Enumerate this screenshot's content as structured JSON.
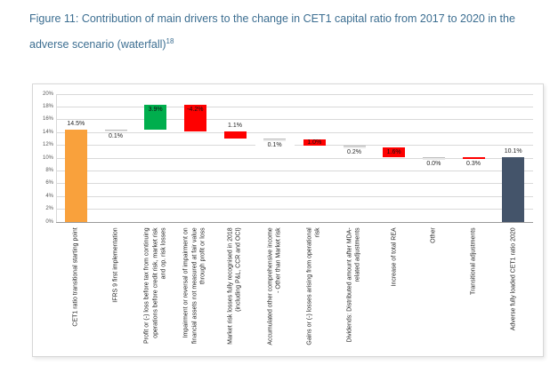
{
  "figure": {
    "title_text": "Figure 11: Contribution of main drivers to the change in CET1 capital ratio from 2017 to 2020 in the adverse scenario (waterfall)",
    "title_sup": "18"
  },
  "colors": {
    "title": "#3c6e91",
    "orange": "#f9a13c",
    "green": "#00ae4d",
    "red": "#fe0000",
    "dark_slate": "#44546a",
    "connector_fill": "#e9e9e9",
    "gridline": "#d9d9d9",
    "axis_line": "#9a9a9a"
  },
  "chart_data": {
    "type": "bar",
    "subtype": "waterfall",
    "title": "",
    "xlabel": "",
    "ylabel": "",
    "ylim": [
      0,
      20
    ],
    "ytick_step": 2,
    "ytick_suffix": "%",
    "grid": true,
    "legend": "none",
    "bars": [
      {
        "category": "CET1 ratio transitional starting point",
        "start": 0,
        "end": 14.5,
        "value": 14.5,
        "value_label": "14.5%",
        "label_pos": "above",
        "style": "orange"
      },
      {
        "category": "IFRS 9 first implementation",
        "start": 14.4,
        "end": 14.5,
        "value": -0.1,
        "value_label": "0.1%",
        "label_pos": "below",
        "style": "connector"
      },
      {
        "category": "Profit or (-) loss before tax from continuing operations before credit risk, market risk and op. risk losses",
        "start": 14.4,
        "end": 18.3,
        "value": 3.9,
        "value_label": "3.9%",
        "label_pos": "inside",
        "style": "green"
      },
      {
        "category": "Impairment or reversal of impairment on financial assets not measured at fair value through profit or loss",
        "start": 14.1,
        "end": 18.3,
        "value": -4.2,
        "value_label": "-4.2%",
        "label_pos": "inside",
        "style": "red"
      },
      {
        "category": "Market risk losses fully recognised in 2018 (including P&L, CCR and OCI)",
        "start": 13.0,
        "end": 14.1,
        "value": -1.1,
        "value_label": "1.1%",
        "label_pos": "above",
        "style": "red"
      },
      {
        "category": "Accumulated other comprehensive income - Other than Market risk",
        "start": 12.9,
        "end": 13.0,
        "value": -0.1,
        "value_label": "0.1%",
        "label_pos": "below",
        "style": "connector"
      },
      {
        "category": "Gains or (-) losses arising from operational risk",
        "start": 11.9,
        "end": 12.9,
        "value": -1.0,
        "value_label": "1.0%",
        "label_pos": "inside",
        "style": "red"
      },
      {
        "category": "Dividends: Distributed amount after MDA-related adjustments",
        "start": 11.7,
        "end": 11.9,
        "value": -0.2,
        "value_label": "0.2%",
        "label_pos": "below",
        "style": "connector"
      },
      {
        "category": "Increase of total REA",
        "start": 10.1,
        "end": 11.7,
        "value": -1.6,
        "value_label": "1.6%",
        "label_pos": "inside",
        "style": "red"
      },
      {
        "category": "Other",
        "start": 10.1,
        "end": 10.1,
        "value": 0.0,
        "value_label": "0.0%",
        "label_pos": "below",
        "style": "connector"
      },
      {
        "category": "Transitional adjustments",
        "start": 9.8,
        "end": 10.1,
        "value": -0.3,
        "value_label": "0.3%",
        "label_pos": "below",
        "style": "transitional"
      },
      {
        "category": "Adverse fully loaded CET1 ratio 2020",
        "start": 0,
        "end": 10.1,
        "value": 10.1,
        "value_label": "10.1%",
        "label_pos": "above",
        "style": "dark"
      }
    ]
  }
}
